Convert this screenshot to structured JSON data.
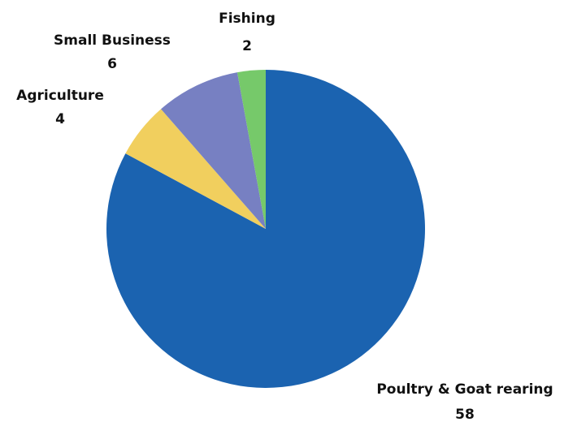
{
  "chart_data": {
    "type": "pie",
    "categories": [
      "Poultry & Goat rearing",
      "Agriculture",
      "Small Business",
      "Fishing"
    ],
    "values": [
      58,
      4,
      6,
      2
    ],
    "colors": [
      "#1b63b0",
      "#f1cf5e",
      "#7780c2",
      "#76c96a"
    ],
    "start_angle_deg": 0,
    "direction": "clockwise",
    "legend": "none",
    "labels": [
      {
        "name": "Poultry & Goat rearing",
        "value": "58"
      },
      {
        "name": "Agriculture",
        "value": "4"
      },
      {
        "name": "Small Business",
        "value": "6"
      },
      {
        "name": "Fishing",
        "value": "2"
      }
    ]
  }
}
